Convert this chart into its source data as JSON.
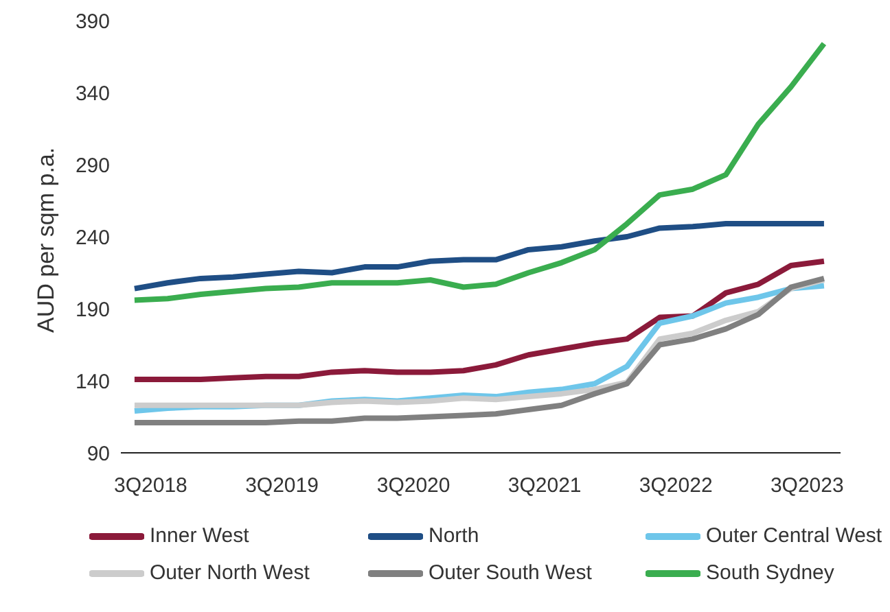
{
  "chart_data": {
    "type": "line",
    "ylabel": "AUD per sqm p.a.",
    "x": [
      "2018-07",
      "2018-10",
      "2019-01",
      "2019-04",
      "2019-07",
      "2019-10",
      "2020-01",
      "2020-04",
      "2020-07",
      "2020-10",
      "2021-01",
      "2021-04",
      "2021-07",
      "2021-10",
      "2022-01",
      "2022-04",
      "2022-07",
      "2022-10",
      "2023-01",
      "2023-04",
      "2023-07",
      "2023-10"
    ],
    "xlim": [
      "2018-05-24",
      "2023-11-16"
    ],
    "xticks": [
      {
        "value": "2018-08-15",
        "label": "3Q2018"
      },
      {
        "value": "2019-08-15",
        "label": "3Q2019"
      },
      {
        "value": "2020-08-15",
        "label": "3Q2020"
      },
      {
        "value": "2021-08-15",
        "label": "3Q2021"
      },
      {
        "value": "2022-08-15",
        "label": "3Q2022"
      },
      {
        "value": "2023-08-15",
        "label": "3Q2023"
      }
    ],
    "ylim": [
      90,
      390
    ],
    "yticks": [
      90,
      140,
      190,
      240,
      290,
      340,
      390
    ],
    "legend": "bottom",
    "marker": "none",
    "line_style": "solid",
    "series": [
      {
        "name": "Inner West",
        "color": "#8b1a3a",
        "values": [
          141,
          141,
          141,
          142,
          143,
          143,
          146,
          147,
          146,
          146,
          147,
          151,
          158,
          162,
          166,
          169,
          184,
          185,
          201,
          207,
          220,
          223
        ]
      },
      {
        "name": "North",
        "color": "#1f4e85",
        "values": [
          204,
          208,
          211,
          212,
          214,
          216,
          215,
          219,
          219,
          223,
          224,
          224,
          231,
          233,
          237,
          240,
          246,
          247,
          249,
          249,
          249,
          249
        ]
      },
      {
        "name": "Outer Central West",
        "color": "#6ec6ea",
        "values": [
          119,
          121,
          122,
          122,
          123,
          123,
          126,
          127,
          126,
          128,
          130,
          129,
          132,
          134,
          138,
          150,
          180,
          185,
          194,
          198,
          204,
          206
        ]
      },
      {
        "name": "Outer North West",
        "color": "#cccccc",
        "values": [
          123,
          123,
          123,
          123,
          123,
          123,
          125,
          126,
          125,
          126,
          128,
          127,
          129,
          131,
          134,
          139,
          169,
          173,
          182,
          188,
          204,
          210
        ]
      },
      {
        "name": "Outer South West",
        "color": "#808080",
        "values": [
          111,
          111,
          111,
          111,
          111,
          112,
          112,
          114,
          114,
          115,
          116,
          117,
          120,
          123,
          131,
          138,
          165,
          169,
          176,
          186,
          205,
          211
        ]
      },
      {
        "name": "South Sydney",
        "color": "#3aad4f",
        "values": [
          196,
          197,
          200,
          202,
          204,
          205,
          208,
          208,
          208,
          210,
          205,
          207,
          215,
          222,
          231,
          249,
          269,
          273,
          283,
          318,
          344,
          374
        ]
      }
    ]
  }
}
